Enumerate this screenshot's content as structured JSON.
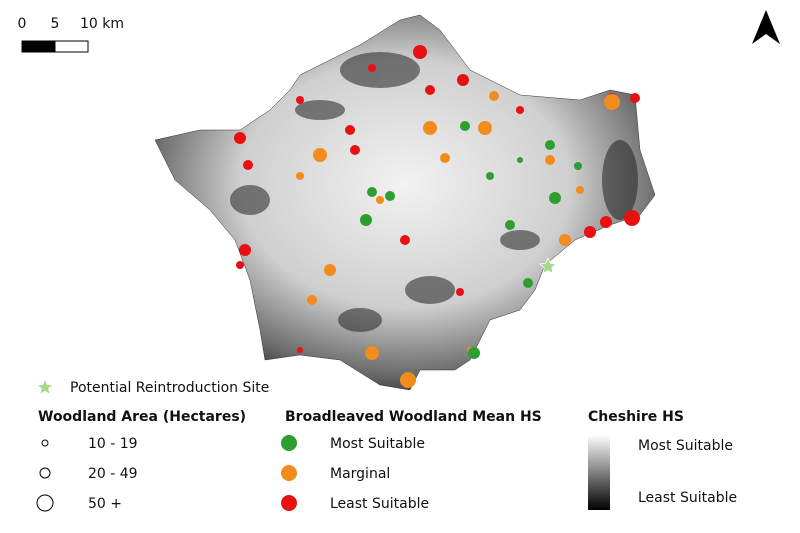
{
  "scale_bar": {
    "labels": [
      "0",
      "5",
      "10 km"
    ]
  },
  "legend": {
    "reintroduction_site": "Potential Reintroduction Site",
    "woodland_area": {
      "title": "Woodland Area (Hectares)",
      "classes": [
        "10 - 19",
        "20 - 49",
        "50 +"
      ]
    },
    "woodland_hs": {
      "title": "Broadleaved Woodland Mean HS",
      "classes": [
        {
          "label": "Most Suitable",
          "color": "#2e9e2e"
        },
        {
          "label": "Marginal",
          "color": "#f28c1c"
        },
        {
          "label": "Least Suitable",
          "color": "#e81010"
        }
      ]
    },
    "cheshire_hs": {
      "title": "Cheshire HS",
      "high": "Most Suitable",
      "low": "Least Suitable"
    }
  }
}
